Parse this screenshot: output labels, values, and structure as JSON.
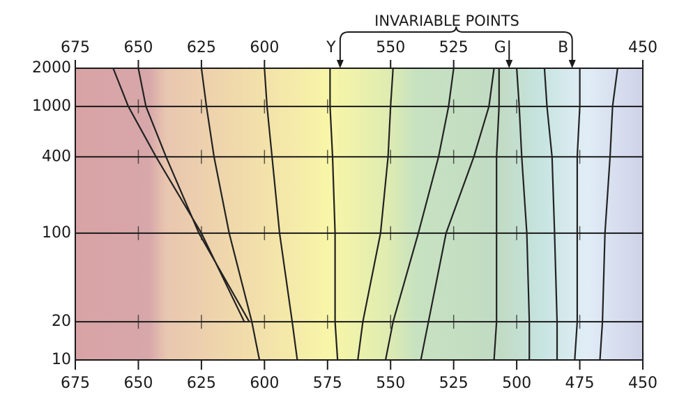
{
  "chart_data": {
    "type": "line",
    "annotation": "INVARIABLE POINTS",
    "xlim": [
      675,
      450
    ],
    "xticks": [
      675,
      650,
      625,
      600,
      575,
      550,
      525,
      500,
      475,
      450
    ],
    "top_ticks": [
      675,
      650,
      625,
      600,
      550,
      525,
      450
    ],
    "invariable_points": [
      {
        "value": 570,
        "label": "Y"
      },
      {
        "value": 503,
        "label": "G"
      },
      {
        "value": 478,
        "label": "B"
      }
    ],
    "ylim": [
      10,
      2000
    ],
    "yscale": "log",
    "yticks": [
      10,
      20,
      100,
      400,
      1000,
      2000
    ],
    "grid": true,
    "line_color": "#222222",
    "y": [
      10,
      20,
      100,
      400,
      1000,
      2000
    ],
    "series": [
      {
        "x": [
          null,
          608,
          625,
          643,
          654,
          660
        ]
      },
      {
        "x": [
          null,
          606,
          626,
          639,
          647,
          650
        ]
      },
      {
        "x": [
          602,
          605,
          614,
          620,
          623,
          625
        ]
      },
      {
        "x": [
          587,
          589,
          594,
          597,
          599,
          600
        ]
      },
      {
        "x": [
          571,
          572,
          572,
          573,
          574,
          574
        ]
      },
      {
        "x": [
          563,
          561,
          554,
          551,
          550,
          549
        ]
      },
      {
        "x": [
          552,
          549,
          539,
          531,
          527,
          525
        ]
      },
      {
        "x": [
          538,
          535,
          528,
          517,
          511,
          509
        ]
      },
      {
        "x": [
          509,
          508,
          508,
          508,
          507,
          507
        ]
      },
      {
        "x": [
          495,
          495,
          496,
          498,
          499,
          500
        ]
      },
      {
        "x": [
          484,
          484,
          485,
          486,
          488,
          489
        ]
      },
      {
        "x": [
          477,
          476,
          476,
          476,
          475,
          475
        ]
      },
      {
        "x": [
          467,
          466,
          465,
          463,
          462,
          460
        ]
      }
    ]
  }
}
